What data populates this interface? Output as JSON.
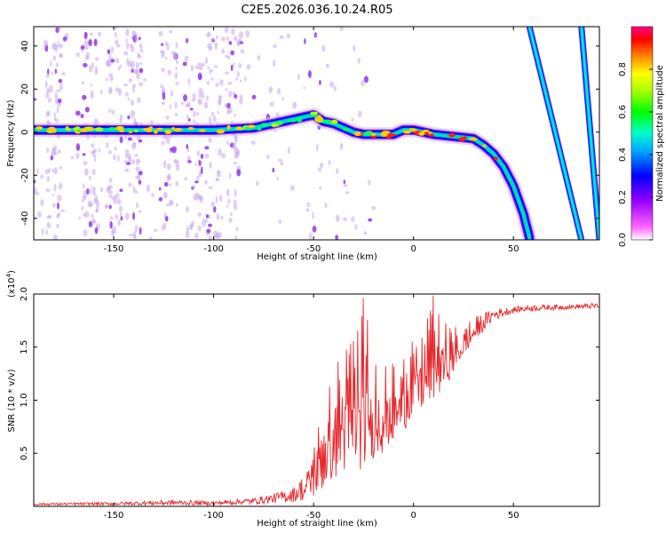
{
  "title": "C2E5.2026.036.10.24.R05",
  "chart_data": [
    {
      "type": "heatmap",
      "xlabel": "Height of straight line (km)",
      "ylabel": "Frequency (Hz)",
      "xlim": [
        -190,
        93
      ],
      "ylim": [
        -50,
        49
      ],
      "xticks": [
        -150,
        -100,
        -50,
        0,
        50
      ],
      "yticks": [
        -40,
        -20,
        0,
        20,
        40
      ],
      "colorbar": {
        "label": "Normalized spectral amplitude",
        "range": [
          0,
          1
        ],
        "ticks": [
          "0.0",
          "0.2",
          "0.4",
          "0.6",
          "0.8"
        ],
        "colors": [
          "#ffffff",
          "#ff55ff",
          "#8000ff",
          "#0000ff",
          "#00aaff",
          "#00ffaa",
          "#00ff00",
          "#aaff00",
          "#ffff00",
          "#ff8800",
          "#ff0000",
          "#ff0088"
        ]
      },
      "main_track": {
        "x": [
          -190,
          -150,
          -100,
          -80,
          -70,
          -60,
          -55,
          -50,
          -45,
          -40,
          -30,
          -25,
          -20,
          -10,
          -5,
          0,
          10,
          20,
          30,
          35,
          40,
          45,
          50,
          55,
          58
        ],
        "y": [
          1,
          1,
          1,
          2,
          4,
          6,
          7,
          8,
          5,
          4,
          0,
          -1,
          -1,
          -1,
          1,
          1,
          -1,
          -2,
          -3,
          -6,
          -10,
          -16,
          -25,
          -38,
          -49
        ]
      },
      "diagonal_tracks": [
        {
          "x_top": 58,
          "x_bottom": 84
        },
        {
          "x_top": 84,
          "x_bottom": 93
        }
      ]
    },
    {
      "type": "line",
      "xlabel": "Height of straight line (km)",
      "ylabel": "SNR (10 * v/v)",
      "yscale_label": "(x10",
      "yscale_exp": "4",
      "yscale_close": ")",
      "xlim": [
        -190,
        93
      ],
      "ylim": [
        0,
        2.0
      ],
      "xticks": [
        -150,
        -100,
        -50,
        0,
        50
      ],
      "yticks": [
        "0.5",
        "1.0",
        "1.5",
        "2.0"
      ],
      "ytick_values": [
        0.5,
        1.0,
        1.5,
        2.0
      ],
      "color": "#e8282c",
      "envelope": {
        "x": [
          -190,
          -150,
          -120,
          -100,
          -80,
          -70,
          -60,
          -55,
          -50,
          -45,
          -40,
          -35,
          -30,
          -25,
          -20,
          -15,
          -10,
          -5,
          0,
          5,
          10,
          15,
          20,
          25,
          30,
          35,
          40,
          50,
          60,
          70,
          80,
          93
        ],
        "lo": [
          0.01,
          0.01,
          0.01,
          0.01,
          0.02,
          0.03,
          0.04,
          0.05,
          0.08,
          0.15,
          0.25,
          0.3,
          0.3,
          0.35,
          0.45,
          0.5,
          0.6,
          0.7,
          0.85,
          0.9,
          1.0,
          1.1,
          1.25,
          1.4,
          1.55,
          1.65,
          1.75,
          1.82,
          1.84,
          1.85,
          1.86,
          1.86
        ],
        "hi": [
          0.03,
          0.04,
          0.06,
          0.05,
          0.08,
          0.12,
          0.18,
          0.3,
          0.7,
          0.95,
          1.3,
          1.6,
          1.85,
          2.0,
          1.6,
          1.4,
          1.35,
          1.5,
          1.7,
          1.7,
          2.0,
          1.75,
          1.7,
          1.72,
          1.78,
          1.82,
          1.86,
          1.88,
          1.9,
          1.9,
          1.9,
          1.92
        ]
      }
    }
  ]
}
